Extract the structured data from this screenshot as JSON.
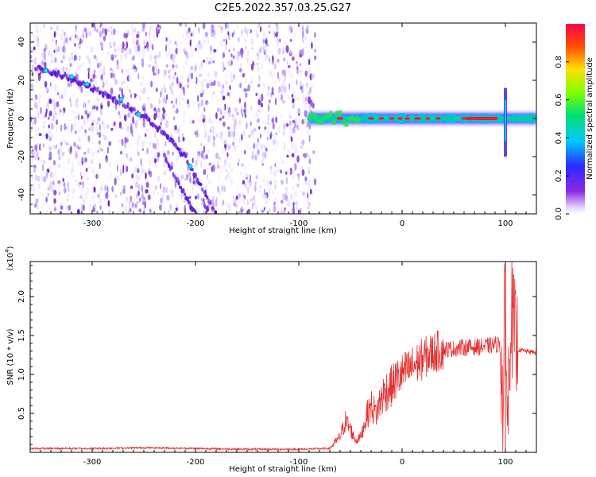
{
  "title": "C2E5.2022.357.03.25.G27",
  "colorbar": {
    "label": "Normalized spectral amplitude",
    "ticks": [
      "0.0",
      "0.2",
      "0.4",
      "0.6",
      "0.8"
    ],
    "tick_values": [
      0,
      0.2,
      0.4,
      0.6,
      0.8
    ],
    "range": [
      0,
      1
    ]
  },
  "colors": {
    "background": "#ffffff",
    "axis": "#000000",
    "snr_line": "#e53030",
    "noise_dots": "#7a2bd6",
    "trace_ridge": "#5a10e0",
    "signal_core": "#00d0a0",
    "signal_peak": "#ff1a2a"
  },
  "chart_data": [
    {
      "type": "heatmap",
      "title": "C2E5.2022.357.03.25.G27",
      "xlabel": "Height of straight line (km)",
      "ylabel": "Frequency (Hz)",
      "xlim": [
        -360,
        130
      ],
      "ylim": [
        -50,
        50
      ],
      "x_ticks": [
        "-300",
        "-200",
        "-100",
        "0",
        "100"
      ],
      "x_tick_values": [
        -300,
        -200,
        -100,
        0,
        100
      ],
      "y_ticks": [
        "-40",
        "-20",
        "0",
        "20",
        "40"
      ],
      "y_tick_values": [
        -40,
        -20,
        0,
        20,
        40
      ],
      "noise_region": [
        -360,
        -90
      ],
      "ridges": [
        {
          "x": [
            -355,
            -325,
            -300,
            -275,
            -250,
            -230,
            -210,
            -190,
            -180
          ],
          "y": [
            27,
            22,
            16,
            9,
            1,
            -8,
            -20,
            -40,
            -50
          ]
        },
        {
          "x": [
            -230,
            -220,
            -212,
            -205,
            -198
          ],
          "y": [
            -20,
            -30,
            -38,
            -46,
            -50
          ]
        }
      ],
      "signal_band": {
        "x_start": -90,
        "x_end": 130,
        "center_hz": 0
      },
      "spike": {
        "x": 100,
        "y_range": [
          -20,
          16
        ]
      }
    },
    {
      "type": "line",
      "xlabel": "Height of straight line (km)",
      "ylabel": "SNR (10 * v/v)",
      "y_multiplier": "(x10",
      "y_multiplier_exp": "4",
      "y_multiplier_close": ")",
      "xlim": [
        -360,
        130
      ],
      "ylim": [
        0,
        2.45
      ],
      "x_ticks": [
        "-300",
        "-200",
        "-100",
        "0",
        "100"
      ],
      "x_tick_values": [
        -300,
        -200,
        -100,
        0,
        100
      ],
      "y_ticks": [
        "0.5",
        "1.0",
        "1.5",
        "2.0"
      ],
      "y_tick_values": [
        0.5,
        1.0,
        1.5,
        2.0
      ],
      "series": [
        {
          "x": [
            -360,
            -300,
            -250,
            -200,
            -150,
            -100,
            -70,
            -60,
            -55,
            -50,
            -45,
            -40,
            -35,
            -30,
            -25,
            -20,
            -15,
            -10,
            -5,
            0,
            10,
            20,
            30,
            40,
            50,
            60,
            70,
            80,
            90,
            95,
            98,
            100,
            102,
            105,
            110,
            120,
            130
          ],
          "y": [
            0.05,
            0.05,
            0.06,
            0.05,
            0.04,
            0.04,
            0.05,
            0.2,
            0.4,
            0.3,
            0.15,
            0.2,
            0.45,
            0.6,
            0.5,
            0.7,
            0.8,
            0.85,
            0.95,
            1.0,
            1.1,
            1.2,
            1.28,
            1.32,
            1.33,
            1.35,
            1.35,
            1.36,
            1.38,
            1.4,
            0.5,
            2.45,
            0.2,
            1.9,
            1.32,
            1.3,
            1.28
          ]
        }
      ]
    }
  ]
}
